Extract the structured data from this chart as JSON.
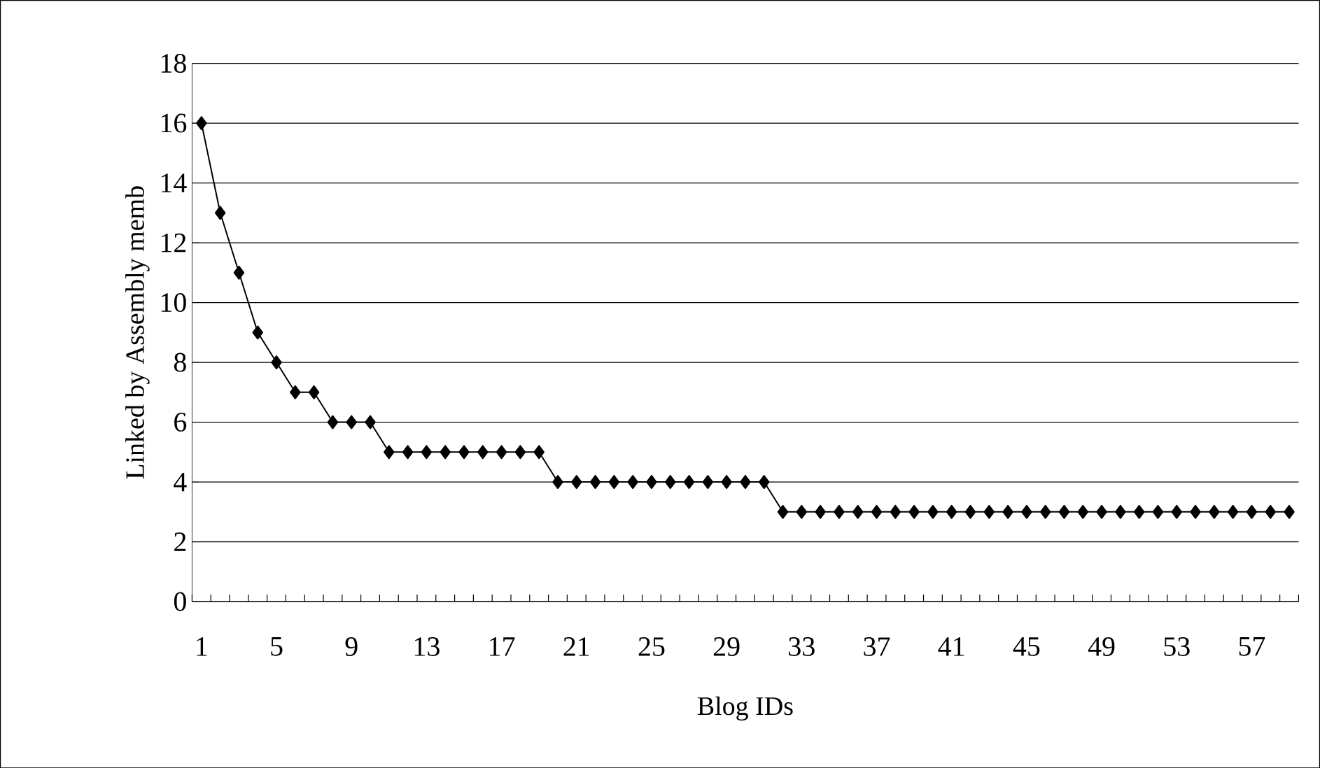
{
  "chart_data": {
    "type": "line",
    "xlabel": "Blog IDs",
    "ylabel": "Linked by Assembly memb",
    "categories": [
      "1",
      null,
      null,
      null,
      "5",
      null,
      null,
      null,
      "9",
      null,
      null,
      null,
      "13",
      null,
      null,
      null,
      "17",
      null,
      null,
      null,
      "21",
      null,
      null,
      null,
      "25",
      null,
      null,
      null,
      "29",
      null,
      null,
      null,
      "33",
      null,
      null,
      null,
      "37",
      null,
      null,
      null,
      "41",
      null,
      null,
      null,
      "45",
      null,
      null,
      null,
      "49",
      null,
      null,
      null,
      "53",
      null,
      null,
      null,
      "57",
      null,
      null
    ],
    "values": [
      16,
      13,
      11,
      9,
      8,
      7,
      7,
      6,
      6,
      6,
      5,
      5,
      5,
      5,
      5,
      5,
      5,
      5,
      5,
      4,
      4,
      4,
      4,
      4,
      4,
      4,
      4,
      4,
      4,
      4,
      4,
      3,
      3,
      3,
      3,
      3,
      3,
      3,
      3,
      3,
      3,
      3,
      3,
      3,
      3,
      3,
      3,
      3,
      3,
      3,
      3,
      3,
      3,
      3,
      3,
      3,
      3,
      3,
      3
    ],
    "color": "#000000",
    "ylim": [
      0,
      18
    ],
    "yticks": [
      0,
      2,
      4,
      6,
      8,
      10,
      12,
      14,
      16,
      18
    ],
    "grid": "y",
    "marker": "diamond",
    "line_style": "solid"
  }
}
